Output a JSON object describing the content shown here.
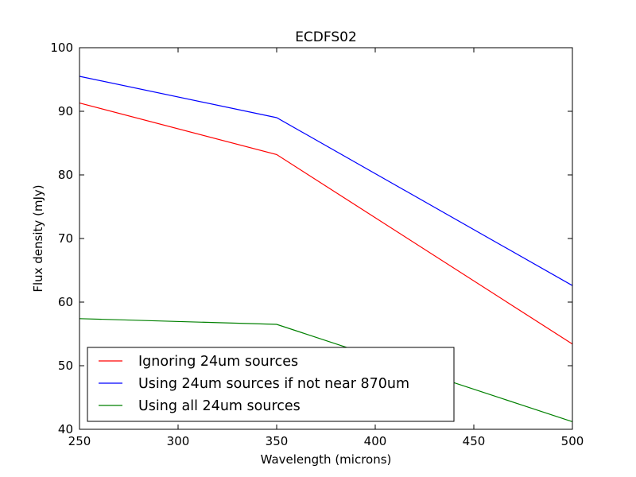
{
  "chart_data": {
    "type": "line",
    "title": "ECDFS02",
    "xlabel": "Wavelength (microns)",
    "ylabel": "Flux density (mJy)",
    "xlim": [
      250,
      500
    ],
    "ylim": [
      40,
      100
    ],
    "xticks": [
      250,
      300,
      350,
      400,
      450,
      500
    ],
    "yticks": [
      40,
      50,
      60,
      70,
      80,
      90,
      100
    ],
    "grid": false,
    "legend_position": "lower-left",
    "x": [
      250,
      350,
      500
    ],
    "series": [
      {
        "name": "Ignoring 24um sources",
        "color": "#ff0000",
        "values": [
          91.3,
          83.2,
          53.4
        ]
      },
      {
        "name": "Using 24um sources if not near 870um",
        "color": "#0000ff",
        "values": [
          95.5,
          89.0,
          62.6
        ]
      },
      {
        "name": "Using all 24um sources",
        "color": "#008000",
        "values": [
          57.4,
          56.5,
          41.2
        ]
      }
    ]
  }
}
